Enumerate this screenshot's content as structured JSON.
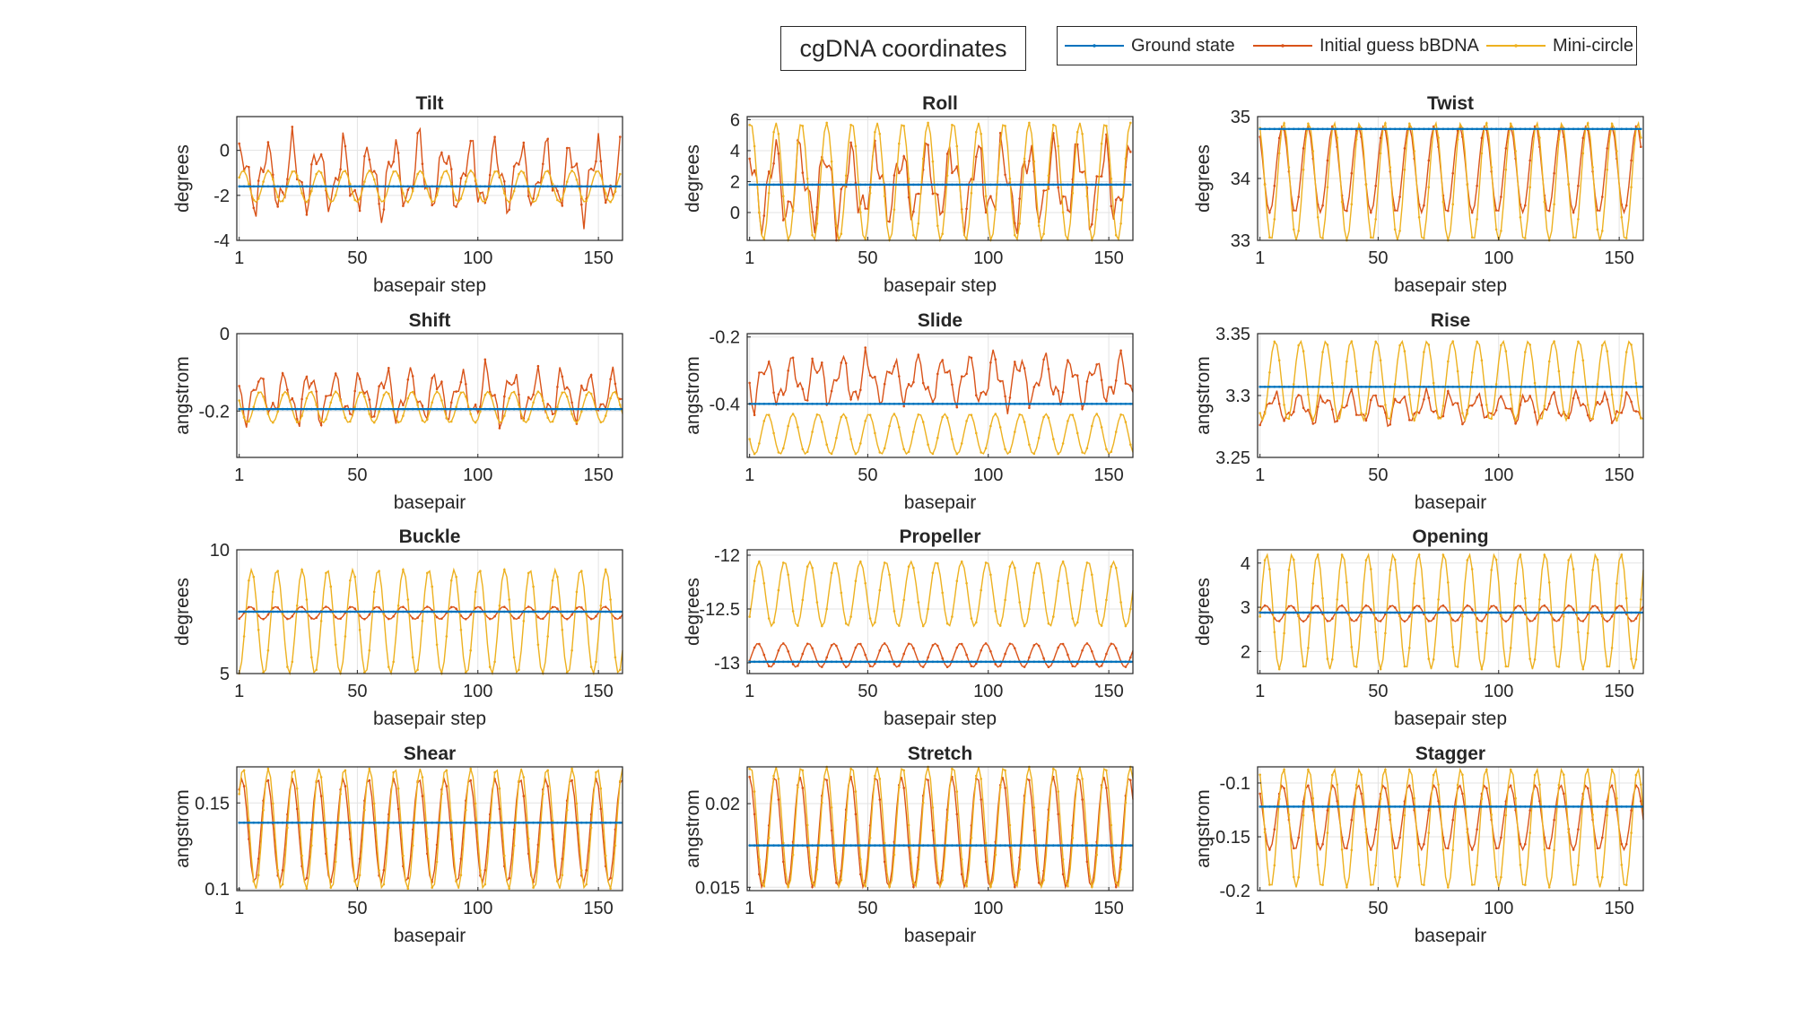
{
  "figure_title": "cgDNA coordinates",
  "legend": [
    {
      "name": "Ground state",
      "color": "#0072BD"
    },
    {
      "name": "Initial guess bBDNA",
      "color": "#D95319"
    },
    {
      "name": "Mini-circle",
      "color": "#EDB120"
    }
  ],
  "chart_data": [
    {
      "type": "line",
      "title": "Tilt",
      "xlabel": "basepair step",
      "ylabel": "degrees",
      "xlim": [
        0,
        160
      ],
      "ylim": [
        -4,
        1.5
      ],
      "xticks": [
        "1",
        "50",
        "100",
        "150"
      ],
      "yticks": [
        "-4",
        "-2",
        "0"
      ],
      "grid": true,
      "n": 159,
      "series": [
        {
          "name": "Ground state",
          "constant": -1.6
        },
        {
          "name": "Initial guess bBDNA",
          "mean": -1.2,
          "amplitude": 2.2,
          "period": 10.5,
          "irregular": true
        },
        {
          "name": "Mini-circle",
          "mean": -1.6,
          "amplitude": 0.7,
          "period": 10.5
        }
      ]
    },
    {
      "type": "line",
      "title": "Roll",
      "xlabel": "basepair step",
      "ylabel": "degrees",
      "xlim": [
        0,
        160
      ],
      "ylim": [
        -1.8,
        6.2
      ],
      "xticks": [
        "1",
        "50",
        "100",
        "150"
      ],
      "yticks": [
        "0",
        "2",
        "4",
        "6"
      ],
      "grid": true,
      "n": 159,
      "series": [
        {
          "name": "Ground state",
          "constant": 1.8
        },
        {
          "name": "Initial guess bBDNA",
          "mean": 1.8,
          "amplitude": 3.5,
          "period": 10.5,
          "irregular": true
        },
        {
          "name": "Mini-circle",
          "mean": 2.0,
          "amplitude": 3.8,
          "period": 10.5
        }
      ]
    },
    {
      "type": "line",
      "title": "Twist",
      "xlabel": "basepair step",
      "ylabel": "degrees",
      "xlim": [
        0,
        160
      ],
      "ylim": [
        33,
        35
      ],
      "xticks": [
        "1",
        "50",
        "100",
        "150"
      ],
      "yticks": [
        "33",
        "34",
        "35"
      ],
      "grid": true,
      "n": 159,
      "series": [
        {
          "name": "Ground state",
          "constant": 34.8
        },
        {
          "name": "Initial guess bBDNA",
          "mean": 34.15,
          "amplitude": 0.7,
          "period": 10.5
        },
        {
          "name": "Mini-circle",
          "mean": 33.95,
          "amplitude": 0.95,
          "period": 10.5
        }
      ]
    },
    {
      "type": "line",
      "title": "Shift",
      "xlabel": "basepair",
      "ylabel": "angstrom",
      "xlim": [
        0,
        160
      ],
      "ylim": [
        -0.32,
        0
      ],
      "xticks": [
        "1",
        "50",
        "100",
        "150"
      ],
      "yticks": [
        "-0.2",
        "0"
      ],
      "grid": true,
      "n": 160,
      "series": [
        {
          "name": "Ground state",
          "constant": -0.195
        },
        {
          "name": "Initial guess bBDNA",
          "mean": -0.16,
          "amplitude": 0.09,
          "period": 10.5,
          "irregular": true
        },
        {
          "name": "Mini-circle",
          "mean": -0.19,
          "amplitude": 0.04,
          "period": 10.5
        }
      ]
    },
    {
      "type": "line",
      "title": "Slide",
      "xlabel": "basepair",
      "ylabel": "angstrom",
      "xlim": [
        0,
        160
      ],
      "ylim": [
        -0.56,
        -0.19
      ],
      "xticks": [
        "1",
        "50",
        "100",
        "150"
      ],
      "yticks": [
        "-0.4",
        "-0.2"
      ],
      "grid": true,
      "n": 160,
      "series": [
        {
          "name": "Ground state",
          "constant": -0.4
        },
        {
          "name": "Initial guess bBDNA",
          "mean": -0.33,
          "amplitude": 0.1,
          "period": 10.5,
          "irregular": true
        },
        {
          "name": "Mini-circle",
          "mean": -0.49,
          "amplitude": 0.06,
          "period": 10.5
        }
      ]
    },
    {
      "type": "line",
      "title": "Rise",
      "xlabel": "basepair",
      "ylabel": "angstrom",
      "xlim": [
        0,
        160
      ],
      "ylim": [
        3.25,
        3.35
      ],
      "xticks": [
        "1",
        "50",
        "100",
        "150"
      ],
      "yticks": [
        "3.25",
        "3.3",
        "3.35"
      ],
      "grid": true,
      "n": 160,
      "series": [
        {
          "name": "Ground state",
          "constant": 3.307
        },
        {
          "name": "Initial guess bBDNA",
          "mean": 3.29,
          "amplitude": 0.016,
          "period": 10.5,
          "irregular": true
        },
        {
          "name": "Mini-circle",
          "mean": 3.312,
          "amplitude": 0.032,
          "period": 10.5
        }
      ]
    },
    {
      "type": "line",
      "title": "Buckle",
      "xlabel": "basepair step",
      "ylabel": "degrees",
      "xlim": [
        0,
        160
      ],
      "ylim": [
        5,
        10
      ],
      "xticks": [
        "1",
        "50",
        "100",
        "150"
      ],
      "yticks": [
        "5",
        "10"
      ],
      "grid": true,
      "n": 160,
      "series": [
        {
          "name": "Ground state",
          "constant": 7.5
        },
        {
          "name": "Initial guess bBDNA",
          "mean": 7.45,
          "amplitude": 0.25,
          "period": 10.5
        },
        {
          "name": "Mini-circle",
          "mean": 7.1,
          "amplitude": 2.1,
          "period": 10.5
        }
      ]
    },
    {
      "type": "line",
      "title": "Propeller",
      "xlabel": "basepair step",
      "ylabel": "degrees",
      "xlim": [
        0,
        160
      ],
      "ylim": [
        -13.1,
        -11.95
      ],
      "xticks": [
        "1",
        "50",
        "100",
        "150"
      ],
      "yticks": [
        "-13",
        "-12.5",
        "-12"
      ],
      "grid": true,
      "n": 160,
      "series": [
        {
          "name": "Ground state",
          "constant": -12.99
        },
        {
          "name": "Initial guess bBDNA",
          "mean": -12.93,
          "amplitude": 0.11,
          "period": 10.5
        },
        {
          "name": "Mini-circle",
          "mean": -12.36,
          "amplitude": 0.3,
          "period": 10.5
        }
      ]
    },
    {
      "type": "line",
      "title": "Opening",
      "xlabel": "basepair step",
      "ylabel": "degrees",
      "xlim": [
        0,
        160
      ],
      "ylim": [
        1.5,
        4.3
      ],
      "xticks": [
        "1",
        "50",
        "100",
        "150"
      ],
      "yticks": [
        "2",
        "3",
        "4"
      ],
      "grid": true,
      "n": 160,
      "series": [
        {
          "name": "Ground state",
          "constant": 2.88
        },
        {
          "name": "Initial guess bBDNA",
          "mean": 2.86,
          "amplitude": 0.18,
          "period": 10.5
        },
        {
          "name": "Mini-circle",
          "mean": 2.9,
          "amplitude": 1.3,
          "period": 10.5
        }
      ]
    },
    {
      "type": "line",
      "title": "Shear",
      "xlabel": "basepair",
      "ylabel": "angstrom",
      "xlim": [
        0,
        160
      ],
      "ylim": [
        0.099,
        0.171
      ],
      "xticks": [
        "1",
        "50",
        "100",
        "150"
      ],
      "yticks": [
        "0.1",
        "0.15"
      ],
      "grid": true,
      "n": 160,
      "series": [
        {
          "name": "Ground state",
          "constant": 0.1385
        },
        {
          "name": "Initial guess bBDNA",
          "mean": 0.134,
          "amplitude": 0.03,
          "period": 10.5
        },
        {
          "name": "Mini-circle",
          "mean": 0.135,
          "amplitude": 0.035,
          "period": 10.5
        }
      ]
    },
    {
      "type": "line",
      "title": "Stretch",
      "xlabel": "basepair",
      "ylabel": "angstrom",
      "xlim": [
        0,
        160
      ],
      "ylim": [
        0.0148,
        0.0222
      ],
      "xticks": [
        "1",
        "50",
        "100",
        "150"
      ],
      "yticks": [
        "0.015",
        "0.02"
      ],
      "grid": true,
      "n": 160,
      "series": [
        {
          "name": "Ground state",
          "constant": 0.0175
        },
        {
          "name": "Initial guess bBDNA",
          "mean": 0.0183,
          "amplitude": 0.0033,
          "period": 10.5
        },
        {
          "name": "Mini-circle",
          "mean": 0.0186,
          "amplitude": 0.0036,
          "period": 10.5
        }
      ]
    },
    {
      "type": "line",
      "title": "Stagger",
      "xlabel": "basepair",
      "ylabel": "angstrom",
      "xlim": [
        0,
        160
      ],
      "ylim": [
        -0.2,
        -0.085
      ],
      "xticks": [
        "1",
        "50",
        "100",
        "150"
      ],
      "yticks": [
        "-0.2",
        "-0.15",
        "-0.1"
      ],
      "grid": true,
      "n": 160,
      "series": [
        {
          "name": "Ground state",
          "constant": -0.122
        },
        {
          "name": "Initial guess bBDNA",
          "mean": -0.132,
          "amplitude": 0.03,
          "period": 10.5
        },
        {
          "name": "Mini-circle",
          "mean": -0.142,
          "amplitude": 0.055,
          "period": 10.5
        }
      ]
    }
  ]
}
